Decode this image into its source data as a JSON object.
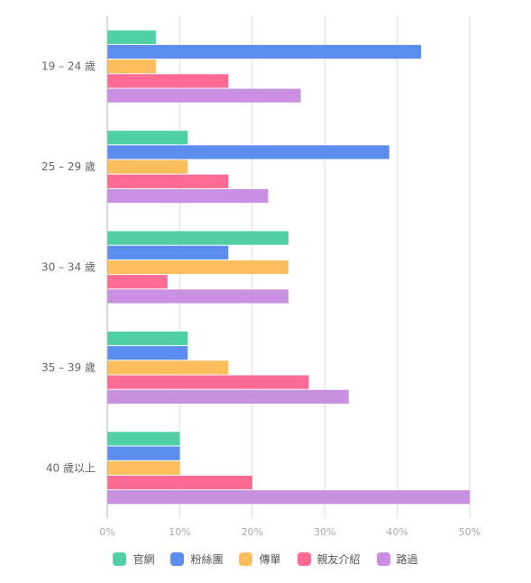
{
  "chart_data": {
    "type": "bar",
    "orientation": "horizontal",
    "categories": [
      "19 – 24 歲",
      "25 – 29 歲",
      "30 – 34 歲",
      "35 – 39 歲",
      "40 歲以上"
    ],
    "series": [
      {
        "name": "官網",
        "color": "#4fd1a5",
        "values": [
          6.7,
          11.1,
          25.0,
          11.1,
          10.0
        ]
      },
      {
        "name": "粉絲團",
        "color": "#5b8def",
        "values": [
          43.3,
          38.9,
          16.7,
          11.1,
          10.0
        ]
      },
      {
        "name": "傳單",
        "color": "#ffbe5c",
        "values": [
          6.7,
          11.1,
          25.0,
          16.7,
          10.0
        ]
      },
      {
        "name": "親友介紹",
        "color": "#ff6b93",
        "values": [
          16.7,
          16.7,
          8.3,
          27.8,
          20.0
        ]
      },
      {
        "name": "路過",
        "color": "#c98fe0",
        "values": [
          26.7,
          22.2,
          25.0,
          33.3,
          50.0
        ]
      }
    ],
    "xlim": [
      0,
      50
    ],
    "xticks": [
      "0%",
      "10%",
      "20%",
      "30%",
      "40%",
      "50%"
    ],
    "grid": true,
    "legend_position": "bottom"
  }
}
